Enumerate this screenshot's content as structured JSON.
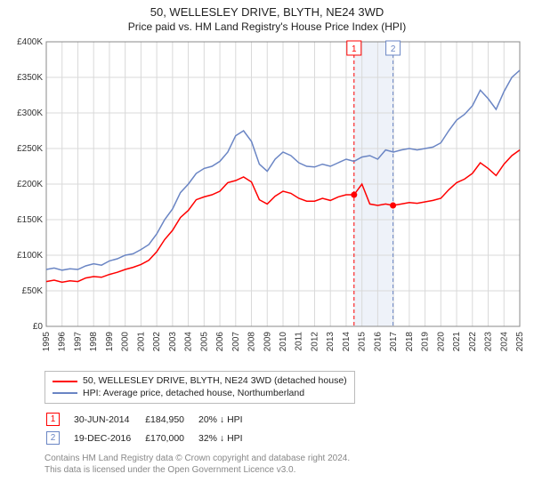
{
  "title_line1": "50, WELLESLEY DRIVE, BLYTH, NE24 3WD",
  "title_line2": "Price paid vs. HM Land Registry's House Price Index (HPI)",
  "chart": {
    "type": "line",
    "background_color": "#ffffff",
    "grid_color": "#d9d9d9",
    "axis_color": "#888888",
    "tick_label_color": "#333333",
    "tick_label_fontsize": 10,
    "x": {
      "min": 1995,
      "max": 2025,
      "ticks": [
        1995,
        1996,
        1997,
        1998,
        1999,
        2000,
        2001,
        2002,
        2003,
        2004,
        2005,
        2006,
        2007,
        2008,
        2009,
        2010,
        2011,
        2012,
        2013,
        2014,
        2015,
        2016,
        2017,
        2018,
        2019,
        2020,
        2021,
        2022,
        2023,
        2024,
        2025
      ],
      "tick_labels": [
        "1995",
        "1996",
        "1997",
        "1998",
        "1999",
        "2000",
        "2001",
        "2002",
        "2003",
        "2004",
        "2005",
        "2006",
        "2007",
        "2008",
        "2009",
        "2010",
        "2011",
        "2012",
        "2013",
        "2014",
        "2015",
        "2016",
        "2017",
        "2018",
        "2019",
        "2020",
        "2021",
        "2022",
        "2023",
        "2024",
        "2025"
      ],
      "label_rotation": -90
    },
    "y": {
      "min": 0,
      "max": 400000,
      "ticks": [
        0,
        50000,
        100000,
        150000,
        200000,
        250000,
        300000,
        350000,
        400000
      ],
      "tick_labels": [
        "£0",
        "£50K",
        "£100K",
        "£150K",
        "£200K",
        "£250K",
        "£300K",
        "£350K",
        "£400K"
      ]
    },
    "highlight_band": {
      "x_start": 2014.45,
      "x_end": 2017.0,
      "fill": "#eef2f9"
    },
    "markers": [
      {
        "id": "1",
        "x": 2014.5,
        "y_line_color": "#ff0000",
        "dash": "4,3",
        "box_border": "#ff0000",
        "box_text": "#ff0000"
      },
      {
        "id": "2",
        "x": 2016.97,
        "y_line_color": "#6a85c4",
        "dash": "4,3",
        "box_border": "#6a85c4",
        "box_text": "#6a85c4"
      }
    ],
    "series": [
      {
        "key": "hpi",
        "label": "HPI: Average price, detached house, Northumberland",
        "color": "#6a85c4",
        "line_width": 1.5,
        "points": [
          [
            1995,
            80000
          ],
          [
            1995.5,
            82000
          ],
          [
            1996,
            79000
          ],
          [
            1996.5,
            81000
          ],
          [
            1997,
            80000
          ],
          [
            1997.5,
            85000
          ],
          [
            1998,
            88000
          ],
          [
            1998.5,
            86000
          ],
          [
            1999,
            92000
          ],
          [
            1999.5,
            95000
          ],
          [
            2000,
            100000
          ],
          [
            2000.5,
            102000
          ],
          [
            2001,
            108000
          ],
          [
            2001.5,
            115000
          ],
          [
            2002,
            130000
          ],
          [
            2002.5,
            150000
          ],
          [
            2003,
            165000
          ],
          [
            2003.5,
            188000
          ],
          [
            2004,
            200000
          ],
          [
            2004.5,
            215000
          ],
          [
            2005,
            222000
          ],
          [
            2005.5,
            225000
          ],
          [
            2006,
            232000
          ],
          [
            2006.5,
            245000
          ],
          [
            2007,
            268000
          ],
          [
            2007.5,
            275000
          ],
          [
            2008,
            260000
          ],
          [
            2008.5,
            228000
          ],
          [
            2009,
            218000
          ],
          [
            2009.5,
            235000
          ],
          [
            2010,
            245000
          ],
          [
            2010.5,
            240000
          ],
          [
            2011,
            230000
          ],
          [
            2011.5,
            225000
          ],
          [
            2012,
            224000
          ],
          [
            2012.5,
            228000
          ],
          [
            2013,
            225000
          ],
          [
            2013.5,
            230000
          ],
          [
            2014,
            235000
          ],
          [
            2014.5,
            232000
          ],
          [
            2015,
            238000
          ],
          [
            2015.5,
            240000
          ],
          [
            2016,
            235000
          ],
          [
            2016.5,
            248000
          ],
          [
            2017,
            245000
          ],
          [
            2017.5,
            248000
          ],
          [
            2018,
            250000
          ],
          [
            2018.5,
            248000
          ],
          [
            2019,
            250000
          ],
          [
            2019.5,
            252000
          ],
          [
            2020,
            258000
          ],
          [
            2020.5,
            275000
          ],
          [
            2021,
            290000
          ],
          [
            2021.5,
            298000
          ],
          [
            2022,
            310000
          ],
          [
            2022.5,
            332000
          ],
          [
            2023,
            320000
          ],
          [
            2023.5,
            305000
          ],
          [
            2024,
            330000
          ],
          [
            2024.5,
            350000
          ],
          [
            2025,
            360000
          ]
        ]
      },
      {
        "key": "property",
        "label": "50, WELLESLEY DRIVE, BLYTH, NE24 3WD (detached house)",
        "color": "#ff0000",
        "line_width": 1.5,
        "points": [
          [
            1995,
            63000
          ],
          [
            1995.5,
            65000
          ],
          [
            1996,
            62000
          ],
          [
            1996.5,
            64000
          ],
          [
            1997,
            63000
          ],
          [
            1997.5,
            68000
          ],
          [
            1998,
            70000
          ],
          [
            1998.5,
            69000
          ],
          [
            1999,
            73000
          ],
          [
            1999.5,
            76000
          ],
          [
            2000,
            80000
          ],
          [
            2000.5,
            83000
          ],
          [
            2001,
            87000
          ],
          [
            2001.5,
            93000
          ],
          [
            2002,
            105000
          ],
          [
            2002.5,
            122000
          ],
          [
            2003,
            135000
          ],
          [
            2003.5,
            153000
          ],
          [
            2004,
            163000
          ],
          [
            2004.5,
            178000
          ],
          [
            2005,
            182000
          ],
          [
            2005.5,
            185000
          ],
          [
            2006,
            190000
          ],
          [
            2006.5,
            202000
          ],
          [
            2007,
            205000
          ],
          [
            2007.5,
            210000
          ],
          [
            2008,
            203000
          ],
          [
            2008.5,
            178000
          ],
          [
            2009,
            172000
          ],
          [
            2009.5,
            183000
          ],
          [
            2010,
            190000
          ],
          [
            2010.5,
            187000
          ],
          [
            2011,
            180000
          ],
          [
            2011.5,
            176000
          ],
          [
            2012,
            176000
          ],
          [
            2012.5,
            180000
          ],
          [
            2013,
            177000
          ],
          [
            2013.5,
            182000
          ],
          [
            2014,
            185000
          ],
          [
            2014.5,
            184950
          ],
          [
            2015,
            200000
          ],
          [
            2015.5,
            172000
          ],
          [
            2016,
            170000
          ],
          [
            2016.5,
            172000
          ],
          [
            2016.97,
            170000
          ],
          [
            2017.5,
            172000
          ],
          [
            2018,
            174000
          ],
          [
            2018.5,
            173000
          ],
          [
            2019,
            175000
          ],
          [
            2019.5,
            177000
          ],
          [
            2020,
            180000
          ],
          [
            2020.5,
            192000
          ],
          [
            2021,
            202000
          ],
          [
            2021.5,
            207000
          ],
          [
            2022,
            215000
          ],
          [
            2022.5,
            230000
          ],
          [
            2023,
            222000
          ],
          [
            2023.5,
            212000
          ],
          [
            2024,
            228000
          ],
          [
            2024.5,
            240000
          ],
          [
            2025,
            248000
          ]
        ],
        "sale_dots": [
          {
            "x": 2014.5,
            "y": 184950
          },
          {
            "x": 2016.97,
            "y": 170000
          }
        ]
      }
    ]
  },
  "legend": {
    "border_color": "#bbbbbb",
    "items": [
      {
        "color": "#ff0000",
        "label": "50, WELLESLEY DRIVE, BLYTH, NE24 3WD (detached house)"
      },
      {
        "color": "#6a85c4",
        "label": "HPI: Average price, detached house, Northumberland"
      }
    ]
  },
  "sales": [
    {
      "marker": "1",
      "marker_color": "#ff0000",
      "date": "30-JUN-2014",
      "price": "£184,950",
      "delta": "20% ↓ HPI"
    },
    {
      "marker": "2",
      "marker_color": "#6a85c4",
      "date": "19-DEC-2016",
      "price": "£170,000",
      "delta": "32% ↓ HPI"
    }
  ],
  "footnote_line1": "Contains HM Land Registry data © Crown copyright and database right 2024.",
  "footnote_line2": "This data is licensed under the Open Government Licence v3.0."
}
